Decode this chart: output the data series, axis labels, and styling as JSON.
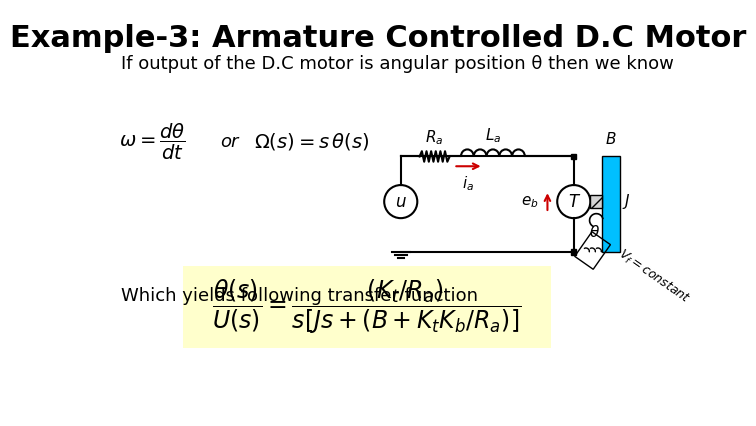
{
  "title": "Example-3: Armature Controlled D.C Motor",
  "title_fontsize": 22,
  "subtitle": "If output of the D.C motor is angular position θ then we know",
  "subtitle_fontsize": 13,
  "which_yields_text": "Which yields following transfer function",
  "which_yields_fontsize": 13,
  "bg_color": "#ffffff",
  "formula_bg": "#ffffcc",
  "circuit_color": "#000000",
  "cyan_color": "#00bfff",
  "red_color": "#cc0000",
  "gray_hatch_color": "#aaaaaa"
}
